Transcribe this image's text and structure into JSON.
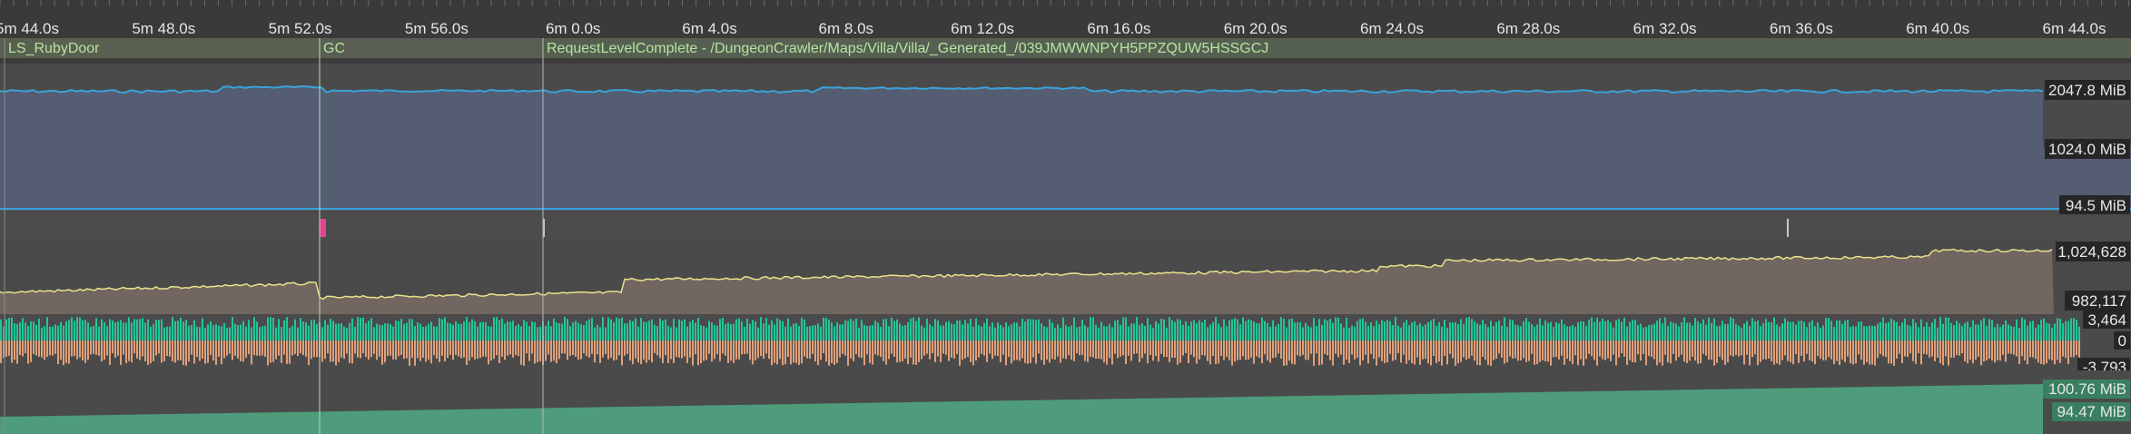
{
  "ruler": {
    "ticks": [
      "5m 44.0s",
      "5m 48.0s",
      "5m 52.0s",
      "5m 56.0s",
      "6m 0.0s",
      "6m 4.0s",
      "6m 8.0s",
      "6m 12.0s",
      "6m 16.0s",
      "6m 20.0s",
      "6m 24.0s",
      "6m 28.0s",
      "6m 32.0s",
      "6m 36.0s",
      "6m 40.0s",
      "6m 44.0s"
    ]
  },
  "events": {
    "items": [
      {
        "label": "LS_RubyDoor"
      },
      {
        "label": "GC"
      },
      {
        "label": "RequestLevelComplete - /DungeonCrawler/Maps/Villa/Villa/_Generated_/039JMWWNPYH5PPZQUW5HSSGCJ"
      }
    ]
  },
  "memory_track": {
    "top_label": "2047.8 MiB",
    "mid_label": "1024.0 MiB",
    "bottom_label": "94.5 MiB",
    "line_color": "#3aa3d9",
    "fill_color": "#545d72"
  },
  "marker_track": {
    "marker_color": "#e0458e"
  },
  "object_count_track": {
    "top_label": "1,024,628",
    "bottom_label": "982,117",
    "line_color": "#e8e28a",
    "fill_color": "#726661"
  },
  "delta_track": {
    "top_label": "3,464",
    "zero_label": "0",
    "bottom_label": "-3,793",
    "positive_color": "#21c69a",
    "negative_color": "#e0a07a"
  },
  "allocated_track": {
    "top_label": "100.76 MiB",
    "bottom_label": "94.47 MiB",
    "fill_color": "#4e9c7c"
  }
}
